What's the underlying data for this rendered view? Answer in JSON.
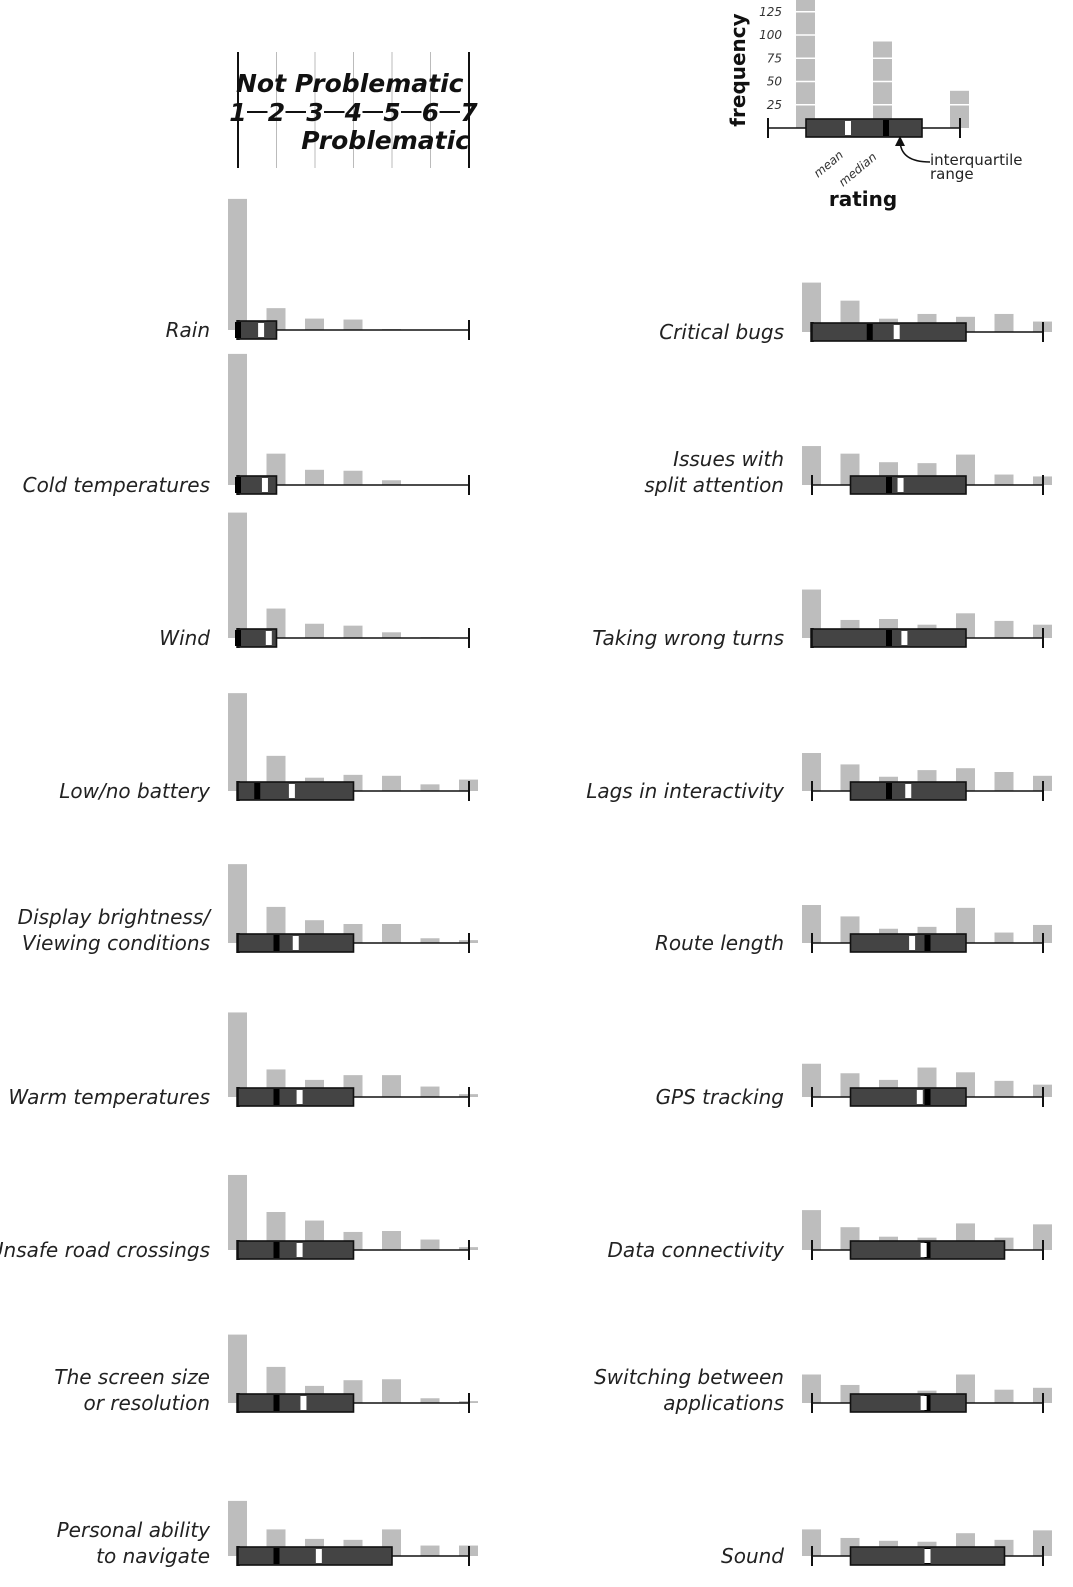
{
  "chart_data": {
    "type": "bar",
    "description_text": {
      "scale_top": "Not Problematic",
      "scale_bottom": "Problematic",
      "scale_ticks": [
        "1",
        "2",
        "3",
        "4",
        "5",
        "6",
        "7"
      ]
    },
    "colors": {
      "bar": "#bdbdbd",
      "box": "#444444",
      "mean": "#ffffff",
      "median": "#000000",
      "axis": "#111111"
    },
    "legend": {
      "frequency_label": "frequency",
      "frequency_ticks": [
        "125",
        "100",
        "75",
        "50",
        "25"
      ],
      "rating_label": "rating",
      "mean_label": "mean",
      "median_label": "median",
      "iqr_label_line1": "interquartile",
      "iqr_label_line2": "range",
      "example_bars": [
        138,
        93,
        40
      ]
    },
    "panels": [
      {
        "column": "left",
        "label_lines": [
          "Rain"
        ],
        "values": [
          138,
          23,
          12,
          11,
          1,
          0,
          0
        ],
        "min": 1,
        "max": 7,
        "q1": 1,
        "q3": 2,
        "mean": 1.6,
        "median": 1
      },
      {
        "column": "left",
        "label_lines": [
          "Cold temperatures"
        ],
        "values": [
          138,
          33,
          16,
          15,
          5,
          0,
          0
        ],
        "min": 1,
        "max": 7,
        "q1": 1,
        "q3": 2,
        "mean": 1.7,
        "median": 1
      },
      {
        "column": "left",
        "label_lines": [
          "Wind"
        ],
        "values": [
          132,
          31,
          15,
          13,
          6,
          1,
          0
        ],
        "min": 1,
        "max": 7,
        "q1": 1,
        "q3": 2,
        "mean": 1.8,
        "median": 1
      },
      {
        "column": "left",
        "label_lines": [
          "Low/no battery"
        ],
        "values": [
          103,
          37,
          14,
          17,
          16,
          7,
          12
        ],
        "min": 1,
        "max": 7,
        "q1": 1,
        "q3": 4,
        "mean": 2.4,
        "median": 1.5
      },
      {
        "column": "left",
        "label_lines": [
          "Display brightness/",
          "Viewing conditions"
        ],
        "values": [
          83,
          38,
          24,
          20,
          20,
          5,
          3
        ],
        "min": 1,
        "max": 7,
        "q1": 1,
        "q3": 4,
        "mean": 2.5,
        "median": 2
      },
      {
        "column": "left",
        "label_lines": [
          "Warm temperatures"
        ],
        "values": [
          89,
          29,
          18,
          23,
          23,
          11,
          3
        ],
        "min": 1,
        "max": 7,
        "q1": 1,
        "q3": 4,
        "mean": 2.6,
        "median": 2
      },
      {
        "column": "left",
        "label_lines": [
          "Unsafe road crossings"
        ],
        "values": [
          79,
          40,
          31,
          19,
          20,
          11,
          3
        ],
        "min": 1,
        "max": 7,
        "q1": 1,
        "q3": 4,
        "mean": 2.6,
        "median": 2
      },
      {
        "column": "left",
        "label_lines": [
          "The screen size",
          "or resolution"
        ],
        "values": [
          72,
          38,
          18,
          24,
          25,
          5,
          2
        ],
        "min": 1,
        "max": 7,
        "q1": 1,
        "q3": 4,
        "mean": 2.7,
        "median": 2
      },
      {
        "column": "left",
        "label_lines": [
          "Personal ability",
          "to navigate"
        ],
        "values": [
          58,
          28,
          18,
          17,
          28,
          11,
          11
        ],
        "min": 1,
        "max": 7,
        "q1": 1,
        "q3": 5,
        "mean": 3.1,
        "median": 2
      },
      {
        "column": "right",
        "label_lines": [
          "Critical bugs"
        ],
        "values": [
          52,
          33,
          14,
          19,
          16,
          19,
          11
        ],
        "min": 1,
        "max": 7,
        "q1": 1,
        "q3": 5,
        "mean": 3.2,
        "median": 2.5
      },
      {
        "column": "right",
        "label_lines": [
          "Issues with",
          "split attention"
        ],
        "values": [
          41,
          33,
          24,
          23,
          32,
          11,
          9
        ],
        "min": 1,
        "max": 7,
        "q1": 2,
        "q3": 5,
        "mean": 3.3,
        "median": 3
      },
      {
        "column": "right",
        "label_lines": [
          "Taking wrong turns"
        ],
        "values": [
          51,
          19,
          20,
          14,
          26,
          18,
          14
        ],
        "min": 1,
        "max": 7,
        "q1": 1,
        "q3": 5,
        "mean": 3.4,
        "median": 3
      },
      {
        "column": "right",
        "label_lines": [
          "Lags in interactivity"
        ],
        "values": [
          40,
          28,
          15,
          22,
          24,
          20,
          16
        ],
        "min": 1,
        "max": 7,
        "q1": 2,
        "q3": 5,
        "mean": 3.5,
        "median": 3
      },
      {
        "column": "right",
        "label_lines": [
          "Route length"
        ],
        "values": [
          40,
          28,
          15,
          17,
          37,
          11,
          19
        ],
        "min": 1,
        "max": 7,
        "q1": 2,
        "q3": 5,
        "mean": 3.6,
        "median": 4
      },
      {
        "column": "right",
        "label_lines": [
          "GPS tracking"
        ],
        "values": [
          35,
          25,
          18,
          31,
          26,
          17,
          13
        ],
        "min": 1,
        "max": 7,
        "q1": 2,
        "q3": 5,
        "mean": 3.8,
        "median": 4
      },
      {
        "column": "right",
        "label_lines": [
          "Data connectivity"
        ],
        "values": [
          42,
          24,
          14,
          13,
          28,
          13,
          27
        ],
        "min": 1,
        "max": 7,
        "q1": 2,
        "q3": 6,
        "mean": 3.9,
        "median": 4
      },
      {
        "column": "right",
        "label_lines": [
          "Switching between",
          "applications"
        ],
        "values": [
          30,
          19,
          9,
          13,
          30,
          14,
          16
        ],
        "min": 1,
        "max": 7,
        "q1": 2,
        "q3": 5,
        "mean": 3.9,
        "median": 4
      },
      {
        "column": "right",
        "label_lines": [
          "Sound"
        ],
        "values": [
          28,
          19,
          16,
          15,
          24,
          17,
          27
        ],
        "min": 1,
        "max": 7,
        "q1": 2,
        "q3": 6,
        "mean": 4.0,
        "median": 4
      }
    ]
  }
}
